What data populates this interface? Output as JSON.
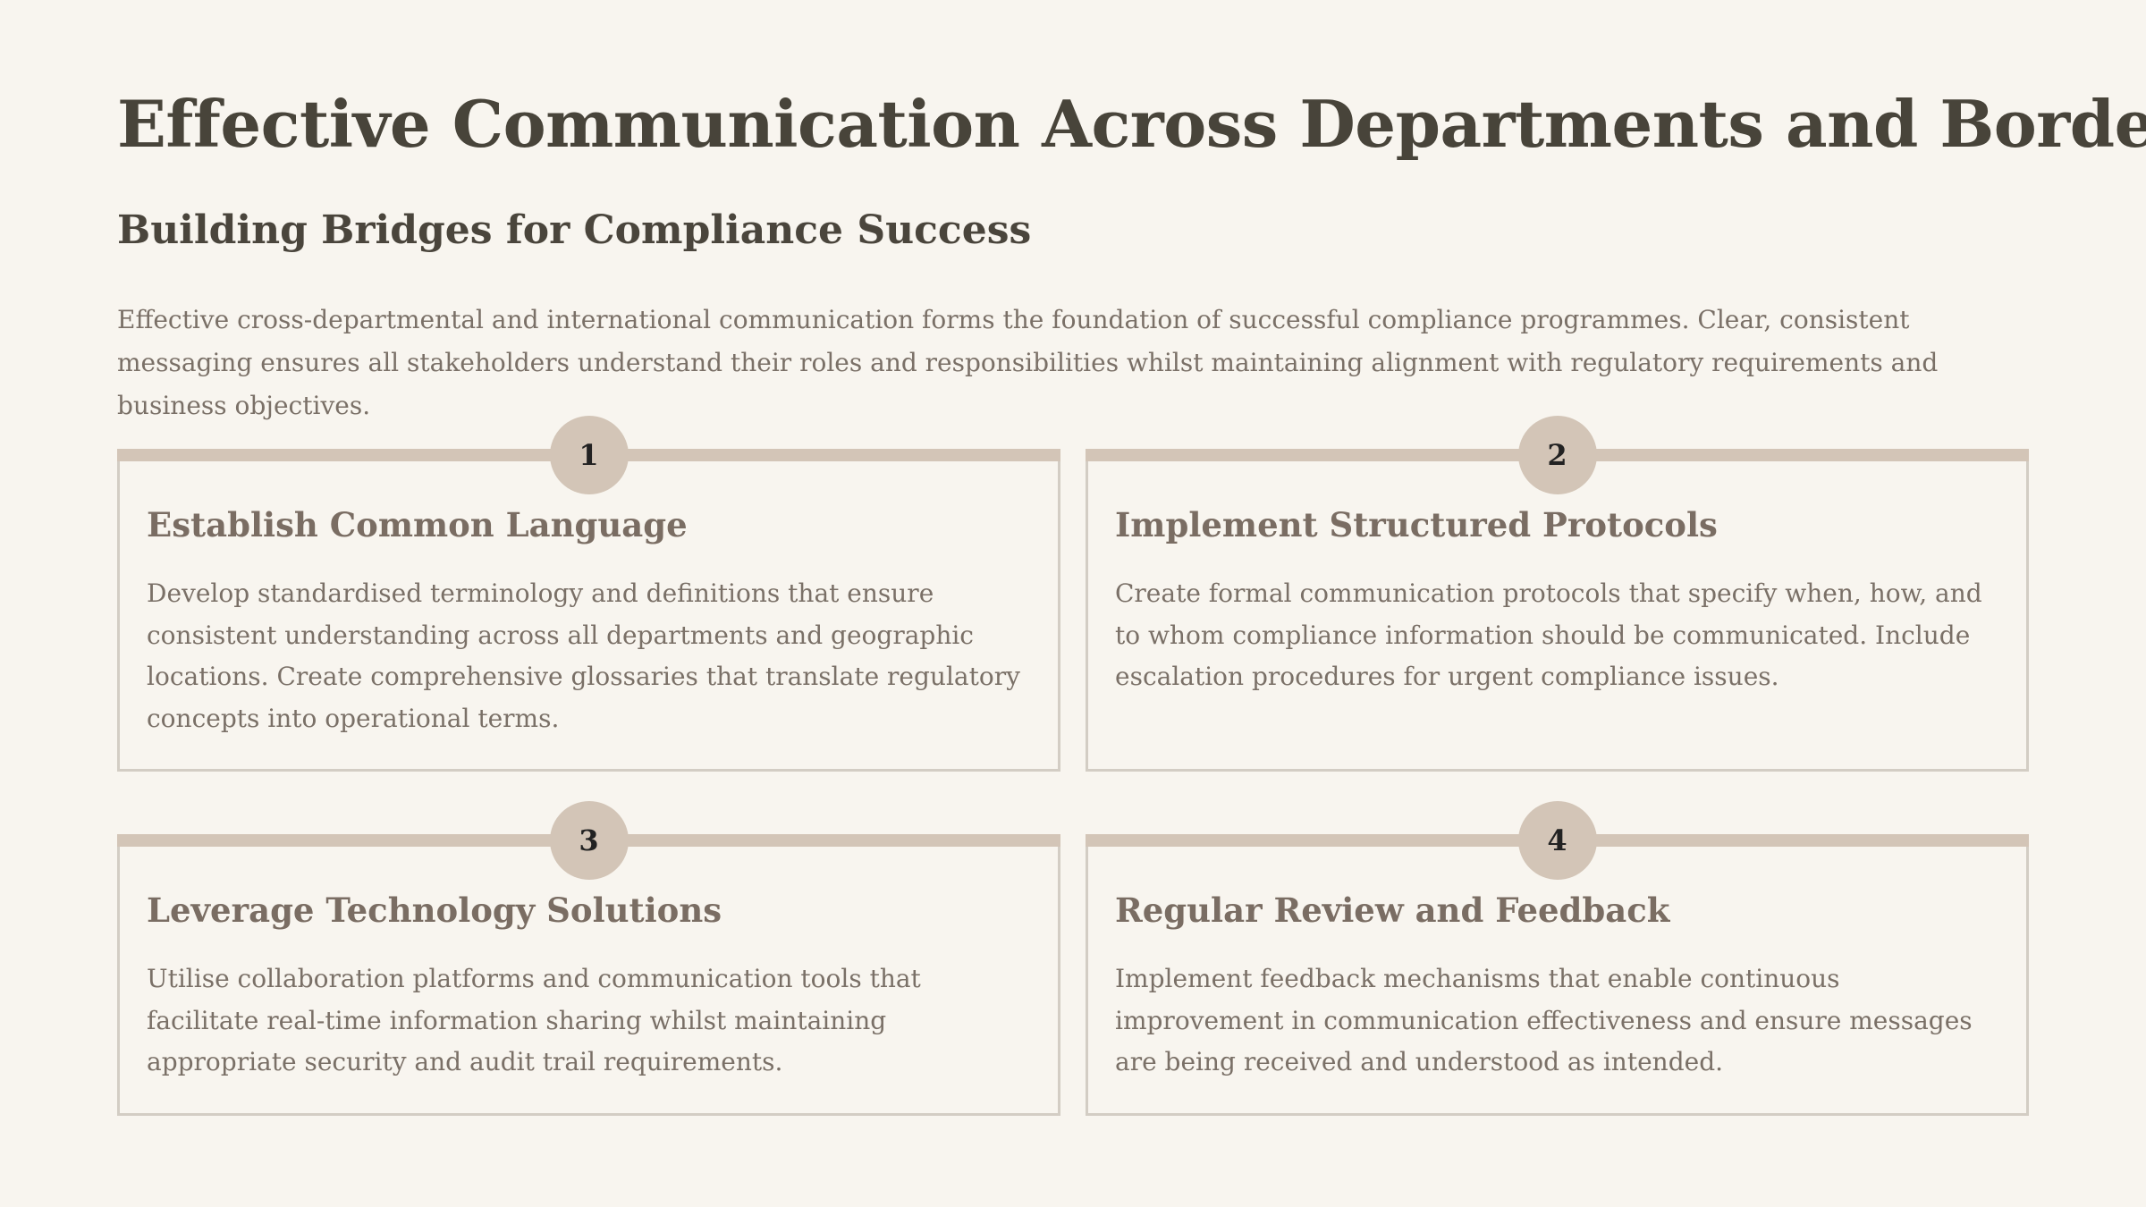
{
  "header": {
    "title": "Effective Communication Across Departments and Borders",
    "subtitle": "Building Bridges for Compliance Success",
    "intro": "Effective cross-departmental and international communication forms the foundation of successful compliance programmes. Clear, consistent messaging ensures all stakeholders understand their roles and responsibilities whilst maintaining alignment with regulatory requirements and business objectives."
  },
  "cards": [
    {
      "number": "1",
      "title": "Establish Common Language",
      "text": "Develop standardised terminology and definitions that ensure consistent understanding across all departments and geographic locations. Create comprehensive glossaries that translate regulatory concepts into operational terms."
    },
    {
      "number": "2",
      "title": "Implement Structured Protocols",
      "text": "Create formal communication protocols that specify when, how, and to whom compliance information should be communicated. Include escalation procedures for urgent compliance issues."
    },
    {
      "number": "3",
      "title": "Leverage Technology Solutions",
      "text": "Utilise collaboration platforms and communication tools that facilitate real-time information sharing whilst maintaining appropriate security and audit trail requirements."
    },
    {
      "number": "4",
      "title": "Regular Review and Feedback",
      "text": "Implement feedback mechanisms that enable continuous improvement in communication effectiveness and ensure messages are being received and understood as intended."
    }
  ],
  "colors": {
    "background": "#f8f5ef",
    "accent": "#d3c5b7",
    "heading": "#48443a",
    "card_title": "#7a6d63",
    "body_text": "#7a7067",
    "border": "#d3cdc4"
  }
}
